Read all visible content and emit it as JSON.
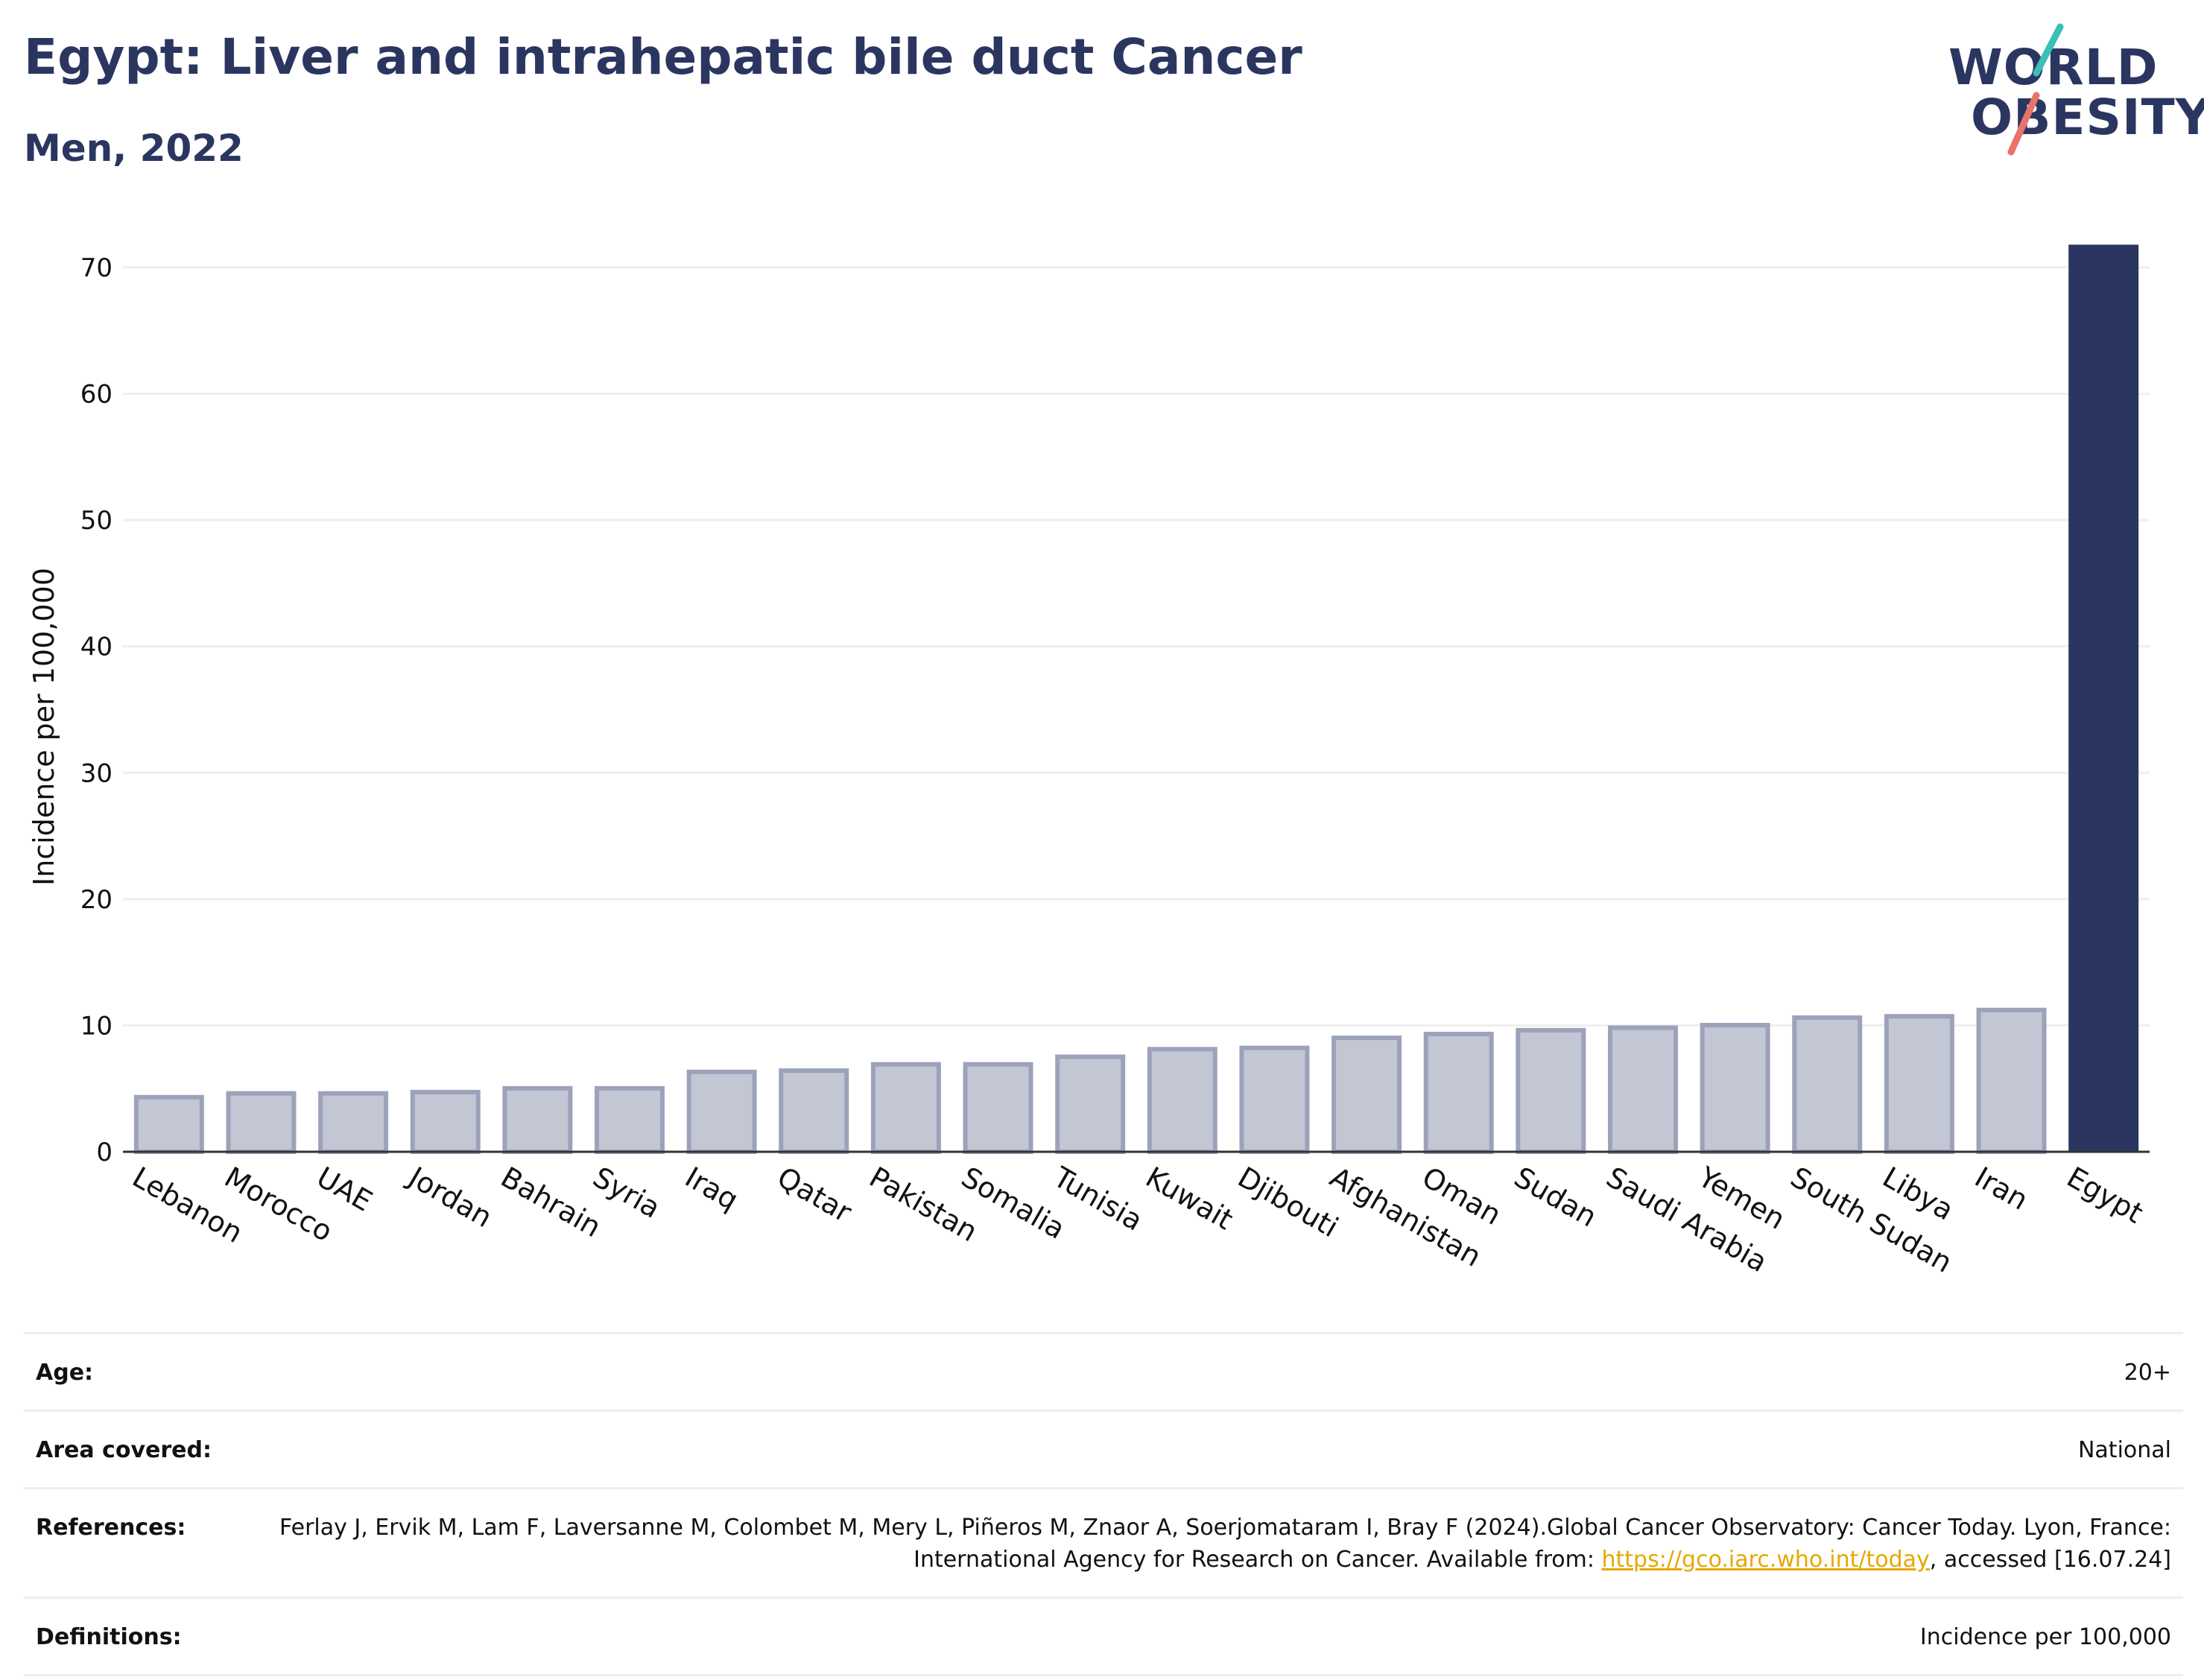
{
  "header": {
    "title": "Egypt: Liver and intrahepatic bile duct Cancer",
    "subtitle": "Men, 2022"
  },
  "logo": {
    "line1": "WORLD",
    "line2": "OBESITY",
    "colors": {
      "text": "#2b3660",
      "slash_top": "#3bbfb8",
      "slash_bottom": "#e8736a"
    }
  },
  "chart_data": {
    "type": "bar",
    "ylabel": "Incidence per 100,000",
    "xlabel": "",
    "ylim": [
      0,
      72
    ],
    "yticks": [
      0,
      10,
      20,
      30,
      40,
      50,
      60,
      70
    ],
    "grid": true,
    "categories": [
      "Lebanon",
      "Morocco",
      "UAE",
      "Jordan",
      "Bahrain",
      "Syria",
      "Iraq",
      "Qatar",
      "Pakistan",
      "Somalia",
      "Tunisia",
      "Kuwait",
      "Djibouti",
      "Afghanistan",
      "Oman",
      "Sudan",
      "Saudi Arabia",
      "Yemen",
      "South Sudan",
      "Libya",
      "Iran",
      "Egypt"
    ],
    "values": [
      4.5,
      4.8,
      4.8,
      4.9,
      5.2,
      5.2,
      6.5,
      6.6,
      7.1,
      7.1,
      7.7,
      8.3,
      8.4,
      9.2,
      9.5,
      9.8,
      10.0,
      10.2,
      10.8,
      10.9,
      11.4,
      71.8
    ],
    "highlight": "Egypt",
    "colors": {
      "highlight": "#2b3660",
      "other_fill": "#c3c6d3",
      "other_stroke": "#9da2bb",
      "grid": "#eeeeee",
      "axis": "#333333"
    }
  },
  "info": [
    {
      "label": "Age:",
      "value": "20+"
    },
    {
      "label": "Area covered:",
      "value": "National"
    },
    {
      "label": "References:",
      "value_pre": "Ferlay J, Ervik M, Lam F, Laversanne M, Colombet M, Mery L, Piñeros M, Znaor A, Soerjomataram I, Bray F (2024).Global Cancer Observatory: Cancer Today. Lyon, France: International Agency for Research on Cancer. Available from: ",
      "link": "https://gco.iarc.who.int/today",
      "value_post": ", accessed [16.07.24]"
    },
    {
      "label": "Definitions:",
      "value": "Incidence per 100,000"
    }
  ]
}
